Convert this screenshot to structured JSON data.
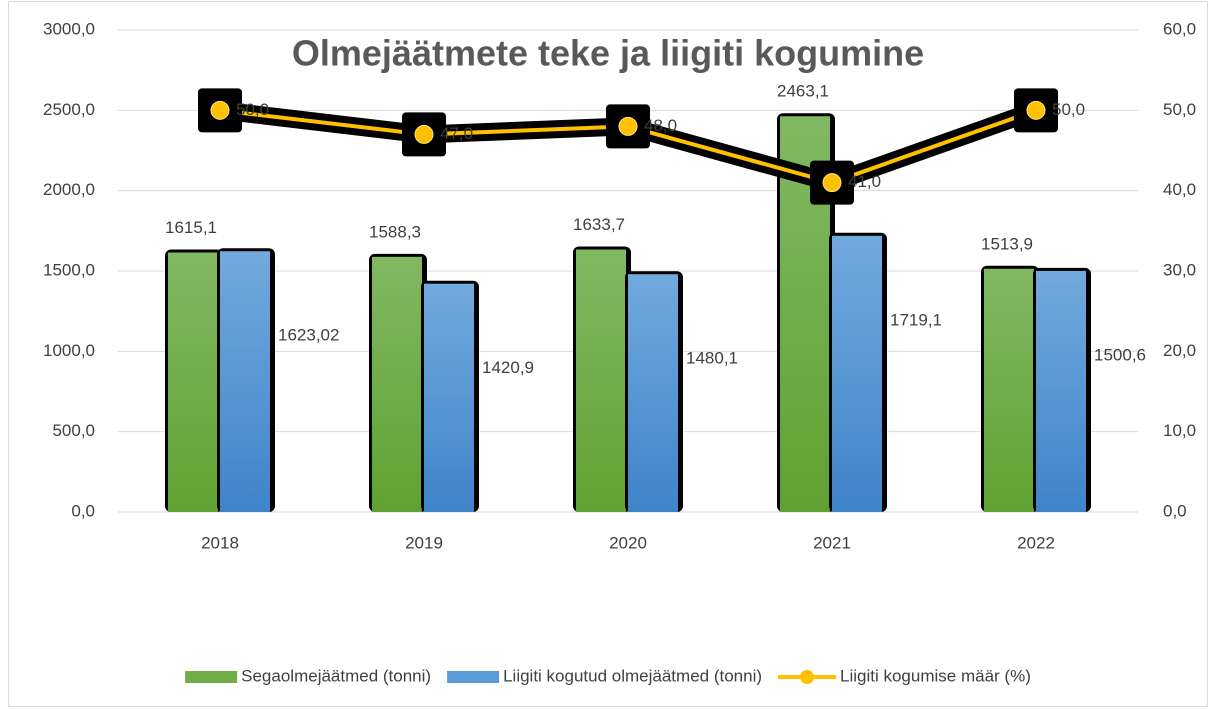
{
  "chart_data": {
    "type": "bar",
    "title": "Olmejäätmete teke ja liigiti kogumine",
    "categories": [
      "2018",
      "2019",
      "2020",
      "2021",
      "2022"
    ],
    "series": [
      {
        "name": "Segaolmejäätmed (tonni)",
        "type": "bar",
        "color": "#70ad47",
        "values": [
          1615.1,
          1588.3,
          1633.7,
          2463.1,
          1513.9
        ],
        "value_labels": [
          "1615,1",
          "1588,3",
          "1633,7",
          "2463,1",
          "1513,9"
        ]
      },
      {
        "name": "Liigiti kogutud olmejäätmed (tonni)",
        "type": "bar",
        "color": "#5b9bd5",
        "values": [
          1623.02,
          1420.9,
          1480.1,
          1719.1,
          1500.6
        ],
        "value_labels": [
          "1623,02",
          "1420,9",
          "1480,1",
          "1719,1",
          "1500,6"
        ]
      },
      {
        "name": "Liigiti kogumise määr (%)",
        "type": "line",
        "axis": "y2",
        "color": "#ffc000",
        "values": [
          50,
          47,
          48,
          41,
          50
        ],
        "value_labels": [
          "50,0",
          "47,0",
          "48,0",
          "41,0",
          "50,0"
        ]
      }
    ],
    "ylim": [
      0,
      3000
    ],
    "yticks": [
      {
        "value": 0,
        "label": "0,0"
      },
      {
        "value": 500,
        "label": "500,0"
      },
      {
        "value": 1000,
        "label": "1000,0"
      },
      {
        "value": 1500,
        "label": "1500,0"
      },
      {
        "value": 2000,
        "label": "2000,0"
      },
      {
        "value": 2500,
        "label": "2500,0"
      },
      {
        "value": 3000,
        "label": "3000,0"
      }
    ],
    "y2lim": [
      0,
      60
    ],
    "y2ticks": [
      {
        "value": 0,
        "label": "0,0"
      },
      {
        "value": 10,
        "label": "10,0"
      },
      {
        "value": 20,
        "label": "20,0"
      },
      {
        "value": 30,
        "label": "30,0"
      },
      {
        "value": 40,
        "label": "40,0"
      },
      {
        "value": 50,
        "label": "50,0"
      },
      {
        "value": 60,
        "label": "60,0"
      }
    ],
    "grid": true,
    "legend": "bottom"
  }
}
